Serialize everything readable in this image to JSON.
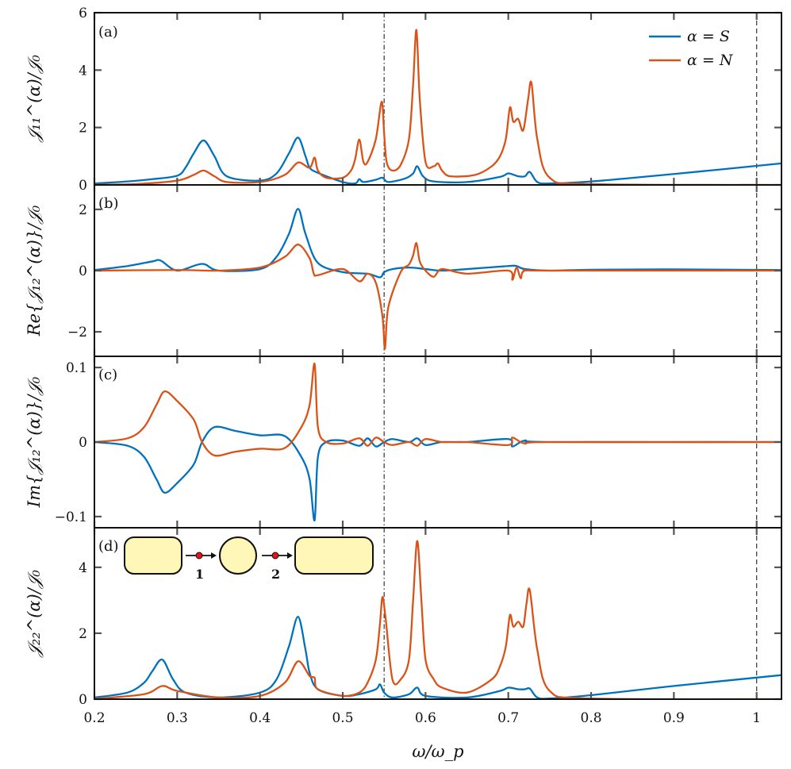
{
  "chart_data": {
    "type": "line",
    "xlabel": "ω/ω_p",
    "xlim": [
      0.2,
      1.03
    ],
    "x_ticks": [
      "0.2",
      "0.3",
      "0.4",
      "0.5",
      "0.6",
      "0.7",
      "0.8",
      "0.9",
      "1"
    ],
    "vlines": [
      {
        "x": 0.55,
        "style": "dashdot"
      },
      {
        "x": 1.0,
        "style": "dashed"
      }
    ],
    "legend": {
      "placement": "top-right",
      "entries": [
        "α = S",
        "α = N"
      ]
    },
    "colors": {
      "S": "#0072bd",
      "N": "#d95319"
    },
    "panels": [
      {
        "tag": "(a)",
        "ylabel": "𝒥₁₁^(α)/𝒥₀",
        "ylim": [
          0,
          6
        ],
        "y_ticks": [
          {
            "value": 0,
            "label": "0"
          },
          {
            "value": 2,
            "label": "2"
          },
          {
            "value": 4,
            "label": "4"
          },
          {
            "value": 6,
            "label": "6"
          }
        ],
        "series": [
          {
            "name": "α = S",
            "x": [
              0.2,
              0.24,
              0.27,
              0.3,
              0.31,
              0.32,
              0.332,
              0.345,
              0.36,
              0.4,
              0.42,
              0.435,
              0.446,
              0.455,
              0.46,
              0.47,
              0.5,
              0.515,
              0.52,
              0.525,
              0.54,
              0.548,
              0.555,
              0.575,
              0.585,
              0.59,
              0.597,
              0.61,
              0.65,
              0.69,
              0.7,
              0.712,
              0.72,
              0.726,
              0.735,
              0.75,
              0.8,
              0.9,
              1.03
            ],
            "y": [
              0.05,
              0.12,
              0.2,
              0.32,
              0.6,
              1.1,
              1.55,
              1.0,
              0.3,
              0.15,
              0.4,
              1.1,
              1.65,
              1.0,
              0.6,
              0.42,
              0.1,
              0.05,
              0.2,
              0.1,
              0.18,
              0.25,
              0.1,
              0.22,
              0.4,
              0.65,
              0.3,
              0.12,
              0.1,
              0.28,
              0.4,
              0.3,
              0.3,
              0.45,
              0.1,
              0.05,
              0.12,
              0.38,
              0.75
            ]
          },
          {
            "name": "α = N",
            "x": [
              0.2,
              0.25,
              0.3,
              0.32,
              0.332,
              0.345,
              0.36,
              0.4,
              0.43,
              0.446,
              0.46,
              0.466,
              0.47,
              0.48,
              0.5,
              0.51,
              0.515,
              0.52,
              0.525,
              0.53,
              0.54,
              0.547,
              0.55,
              0.553,
              0.56,
              0.57,
              0.58,
              0.585,
              0.589,
              0.593,
              0.6,
              0.61,
              0.615,
              0.62,
              0.63,
              0.66,
              0.68,
              0.69,
              0.697,
              0.702,
              0.706,
              0.712,
              0.718,
              0.724,
              0.728,
              0.735,
              0.75,
              0.8,
              1.03
            ],
            "y": [
              0.01,
              0.03,
              0.15,
              0.35,
              0.5,
              0.3,
              0.1,
              0.1,
              0.35,
              0.78,
              0.6,
              0.95,
              0.5,
              0.25,
              0.25,
              0.5,
              0.9,
              1.58,
              0.8,
              0.8,
              1.6,
              2.9,
              1.8,
              0.8,
              0.5,
              0.7,
              1.6,
              3.5,
              5.4,
              3.0,
              0.8,
              0.65,
              0.75,
              0.5,
              0.3,
              0.35,
              0.65,
              1.0,
              1.6,
              2.7,
              2.2,
              2.3,
              1.9,
              3.0,
              3.55,
              1.6,
              0.25,
              0.03,
              0.0
            ]
          }
        ]
      },
      {
        "tag": "(b)",
        "ylabel": "Re{𝒥₁₂^(α)}/𝒥₀",
        "ylim": [
          -2.8,
          2.8
        ],
        "y_ticks": [
          {
            "value": -2,
            "label": "−2"
          },
          {
            "value": 0,
            "label": "0"
          },
          {
            "value": 2,
            "label": "2"
          }
        ],
        "series": [
          {
            "name": "α = S",
            "x": [
              0.2,
              0.24,
              0.27,
              0.28,
              0.3,
              0.33,
              0.35,
              0.4,
              0.42,
              0.435,
              0.446,
              0.455,
              0.47,
              0.5,
              0.53,
              0.545,
              0.55,
              0.56,
              0.58,
              0.6,
              0.62,
              0.65,
              0.7,
              0.71,
              0.72,
              0.75,
              0.8,
              0.9,
              1.03
            ],
            "y": [
              0.02,
              0.15,
              0.3,
              0.33,
              0.0,
              0.22,
              0.0,
              0.05,
              0.45,
              1.2,
              2.02,
              1.2,
              0.25,
              -0.05,
              -0.1,
              -0.22,
              -0.05,
              0.05,
              0.1,
              0.05,
              0.0,
              0.05,
              0.15,
              0.15,
              0.05,
              0.0,
              0.03,
              0.04,
              0.02
            ]
          },
          {
            "name": "α = N",
            "x": [
              0.2,
              0.3,
              0.35,
              0.4,
              0.43,
              0.446,
              0.46,
              0.465,
              0.47,
              0.5,
              0.52,
              0.53,
              0.54,
              0.548,
              0.551,
              0.555,
              0.57,
              0.58,
              0.585,
              0.589,
              0.593,
              0.6,
              0.61,
              0.62,
              0.65,
              0.7,
              0.705,
              0.71,
              0.715,
              0.72,
              0.75,
              1.03
            ],
            "y": [
              0.0,
              0.02,
              0.0,
              0.1,
              0.45,
              0.85,
              0.4,
              -0.1,
              -0.15,
              0.05,
              -0.35,
              -0.1,
              -0.4,
              -1.5,
              -2.55,
              -1.2,
              -0.05,
              0.2,
              0.5,
              0.9,
              0.3,
              0.0,
              -0.2,
              0.05,
              -0.1,
              0.0,
              -0.3,
              0.1,
              -0.25,
              0.0,
              0.0,
              0.0
            ]
          }
        ]
      },
      {
        "tag": "(c)",
        "ylabel": "Im{𝒥₁₂^(α)}/𝒥₀",
        "ylim": [
          -0.115,
          0.115
        ],
        "y_ticks": [
          {
            "value": -0.1,
            "label": "−0.1"
          },
          {
            "value": 0,
            "label": "0"
          },
          {
            "value": 0.1,
            "label": "0.1"
          }
        ],
        "series": [
          {
            "name": "α = S",
            "x": [
              0.2,
              0.24,
              0.26,
              0.275,
              0.285,
              0.3,
              0.32,
              0.33,
              0.345,
              0.37,
              0.4,
              0.43,
              0.45,
              0.46,
              0.466,
              0.47,
              0.48,
              0.5,
              0.52,
              0.53,
              0.54,
              0.55,
              0.56,
              0.58,
              0.59,
              0.6,
              0.62,
              0.65,
              0.7,
              0.705,
              0.72,
              0.75,
              1.03
            ],
            "y": [
              0.0,
              -0.005,
              -0.02,
              -0.05,
              -0.068,
              -0.055,
              -0.03,
              0.0,
              0.02,
              0.015,
              0.009,
              0.008,
              -0.02,
              -0.05,
              -0.105,
              -0.02,
              0.0,
              0.002,
              -0.005,
              0.005,
              -0.006,
              0.0,
              0.004,
              0.0,
              0.005,
              -0.004,
              0.0,
              0.0,
              0.004,
              -0.006,
              0.002,
              0.0,
              0.0
            ]
          },
          {
            "name": "α = N",
            "x": [
              0.2,
              0.24,
              0.26,
              0.275,
              0.285,
              0.3,
              0.32,
              0.33,
              0.345,
              0.37,
              0.4,
              0.43,
              0.45,
              0.46,
              0.466,
              0.47,
              0.48,
              0.5,
              0.52,
              0.53,
              0.54,
              0.55,
              0.56,
              0.58,
              0.59,
              0.6,
              0.62,
              0.65,
              0.7,
              0.705,
              0.72,
              0.75,
              1.03
            ],
            "y": [
              0.0,
              0.005,
              0.02,
              0.05,
              0.068,
              0.055,
              0.03,
              0.0,
              -0.018,
              -0.013,
              -0.009,
              -0.008,
              0.02,
              0.05,
              0.105,
              0.02,
              0.0,
              -0.002,
              0.005,
              -0.005,
              0.006,
              0.0,
              -0.004,
              0.0,
              -0.005,
              0.004,
              0.0,
              0.0,
              -0.004,
              0.006,
              -0.002,
              0.0,
              0.0
            ]
          }
        ]
      },
      {
        "tag": "(d)",
        "ylabel": "𝒥₂₂^(α)/𝒥₀",
        "ylim": [
          0,
          5.2
        ],
        "y_ticks": [
          {
            "value": 0,
            "label": "0"
          },
          {
            "value": 2,
            "label": "2"
          },
          {
            "value": 4,
            "label": "4"
          }
        ],
        "inset_labels": [
          "1",
          "2"
        ],
        "series": [
          {
            "name": "α = S",
            "x": [
              0.2,
              0.24,
              0.26,
              0.27,
              0.282,
              0.295,
              0.31,
              0.35,
              0.4,
              0.42,
              0.435,
              0.446,
              0.455,
              0.46,
              0.47,
              0.5,
              0.52,
              0.54,
              0.545,
              0.55,
              0.56,
              0.58,
              0.59,
              0.6,
              0.65,
              0.69,
              0.7,
              0.712,
              0.72,
              0.726,
              0.735,
              0.75,
              0.8,
              0.9,
              1.03
            ],
            "y": [
              0.05,
              0.2,
              0.5,
              0.85,
              1.2,
              0.6,
              0.2,
              0.05,
              0.2,
              0.6,
              1.6,
              2.5,
              1.5,
              0.8,
              0.3,
              0.1,
              0.15,
              0.3,
              0.45,
              0.2,
              0.05,
              0.15,
              0.35,
              0.1,
              0.05,
              0.25,
              0.35,
              0.3,
              0.3,
              0.32,
              0.05,
              0.02,
              0.12,
              0.4,
              0.73
            ]
          },
          {
            "name": "α = N",
            "x": [
              0.2,
              0.26,
              0.282,
              0.3,
              0.35,
              0.4,
              0.43,
              0.446,
              0.46,
              0.466,
              0.47,
              0.5,
              0.52,
              0.53,
              0.54,
              0.545,
              0.548,
              0.552,
              0.56,
              0.57,
              0.58,
              0.585,
              0.59,
              0.595,
              0.6,
              0.61,
              0.62,
              0.65,
              0.68,
              0.69,
              0.697,
              0.702,
              0.706,
              0.712,
              0.718,
              0.722,
              0.726,
              0.735,
              0.75,
              0.8,
              1.03
            ],
            "y": [
              0.01,
              0.15,
              0.4,
              0.25,
              0.05,
              0.1,
              0.5,
              1.15,
              0.7,
              0.65,
              0.3,
              0.1,
              0.2,
              0.5,
              1.2,
              2.3,
              3.1,
              2.4,
              0.6,
              0.6,
              1.2,
              3.0,
              4.8,
              3.0,
              1.2,
              0.6,
              0.35,
              0.2,
              0.6,
              1.0,
              1.6,
              2.55,
              2.2,
              2.35,
              2.2,
              2.9,
              3.3,
              1.5,
              0.25,
              0.02,
              0.0
            ]
          }
        ]
      }
    ]
  }
}
